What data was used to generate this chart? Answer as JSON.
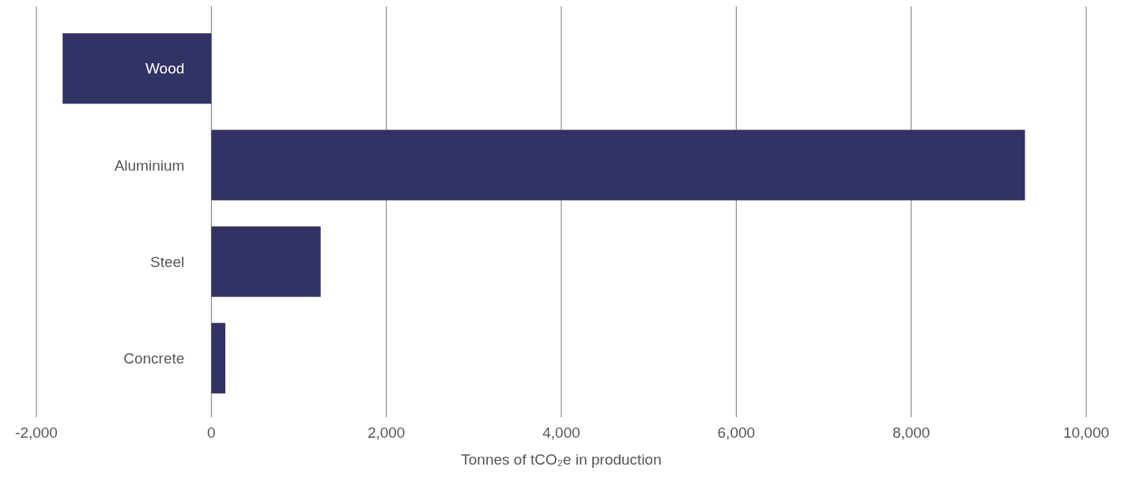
{
  "chart_data": {
    "type": "bar",
    "orientation": "horizontal",
    "categories": [
      "Wood",
      "Aluminium",
      "Steel",
      "Concrete"
    ],
    "values": [
      -1700,
      9300,
      1250,
      160
    ],
    "color": "#323264",
    "xlim": [
      -2000,
      10000
    ],
    "xticks": [
      {
        "value": -2000,
        "label": "-2,000"
      },
      0,
      {
        "value": 2000,
        "label": "2,000"
      },
      {
        "value": 4000,
        "label": "4,000"
      },
      {
        "value": 6000,
        "label": "6,000"
      },
      {
        "value": 8000,
        "label": "8,000"
      },
      {
        "value": 10000,
        "label": "10,000"
      }
    ],
    "xlabel": "Tonnes of tCO₂e in production",
    "grid": "x"
  }
}
